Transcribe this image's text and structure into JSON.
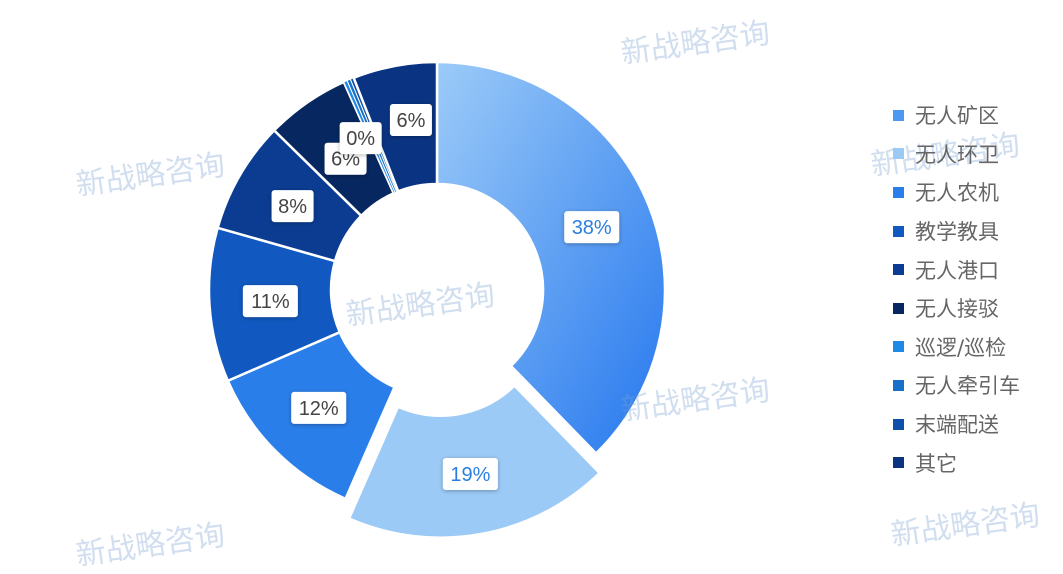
{
  "chart_data": {
    "type": "pie",
    "donut": true,
    "categories": [
      "无人矿区",
      "无人环卫",
      "无人农机",
      "教学教具",
      "无人港口",
      "无人接驳",
      "巡逻/巡检",
      "无人牵引车",
      "末端配送",
      "其它"
    ],
    "values": [
      38,
      19,
      12,
      11,
      8,
      6,
      0,
      0,
      0,
      6
    ],
    "labels": [
      "38%",
      "19%",
      "12%",
      "11%",
      "8%",
      "6%",
      "0%",
      "",
      "",
      "6%"
    ],
    "colors": [
      "#4c98f2",
      "#9ccaf6",
      "#2a7ee9",
      "#1158c0",
      "#0b3c92",
      "#072761",
      "#1e8ae6",
      "#1670c8",
      "#0e4faa",
      "#0a3482"
    ],
    "exploded": "无人环卫",
    "legend_position": "right"
  },
  "watermark": "新战略咨询"
}
